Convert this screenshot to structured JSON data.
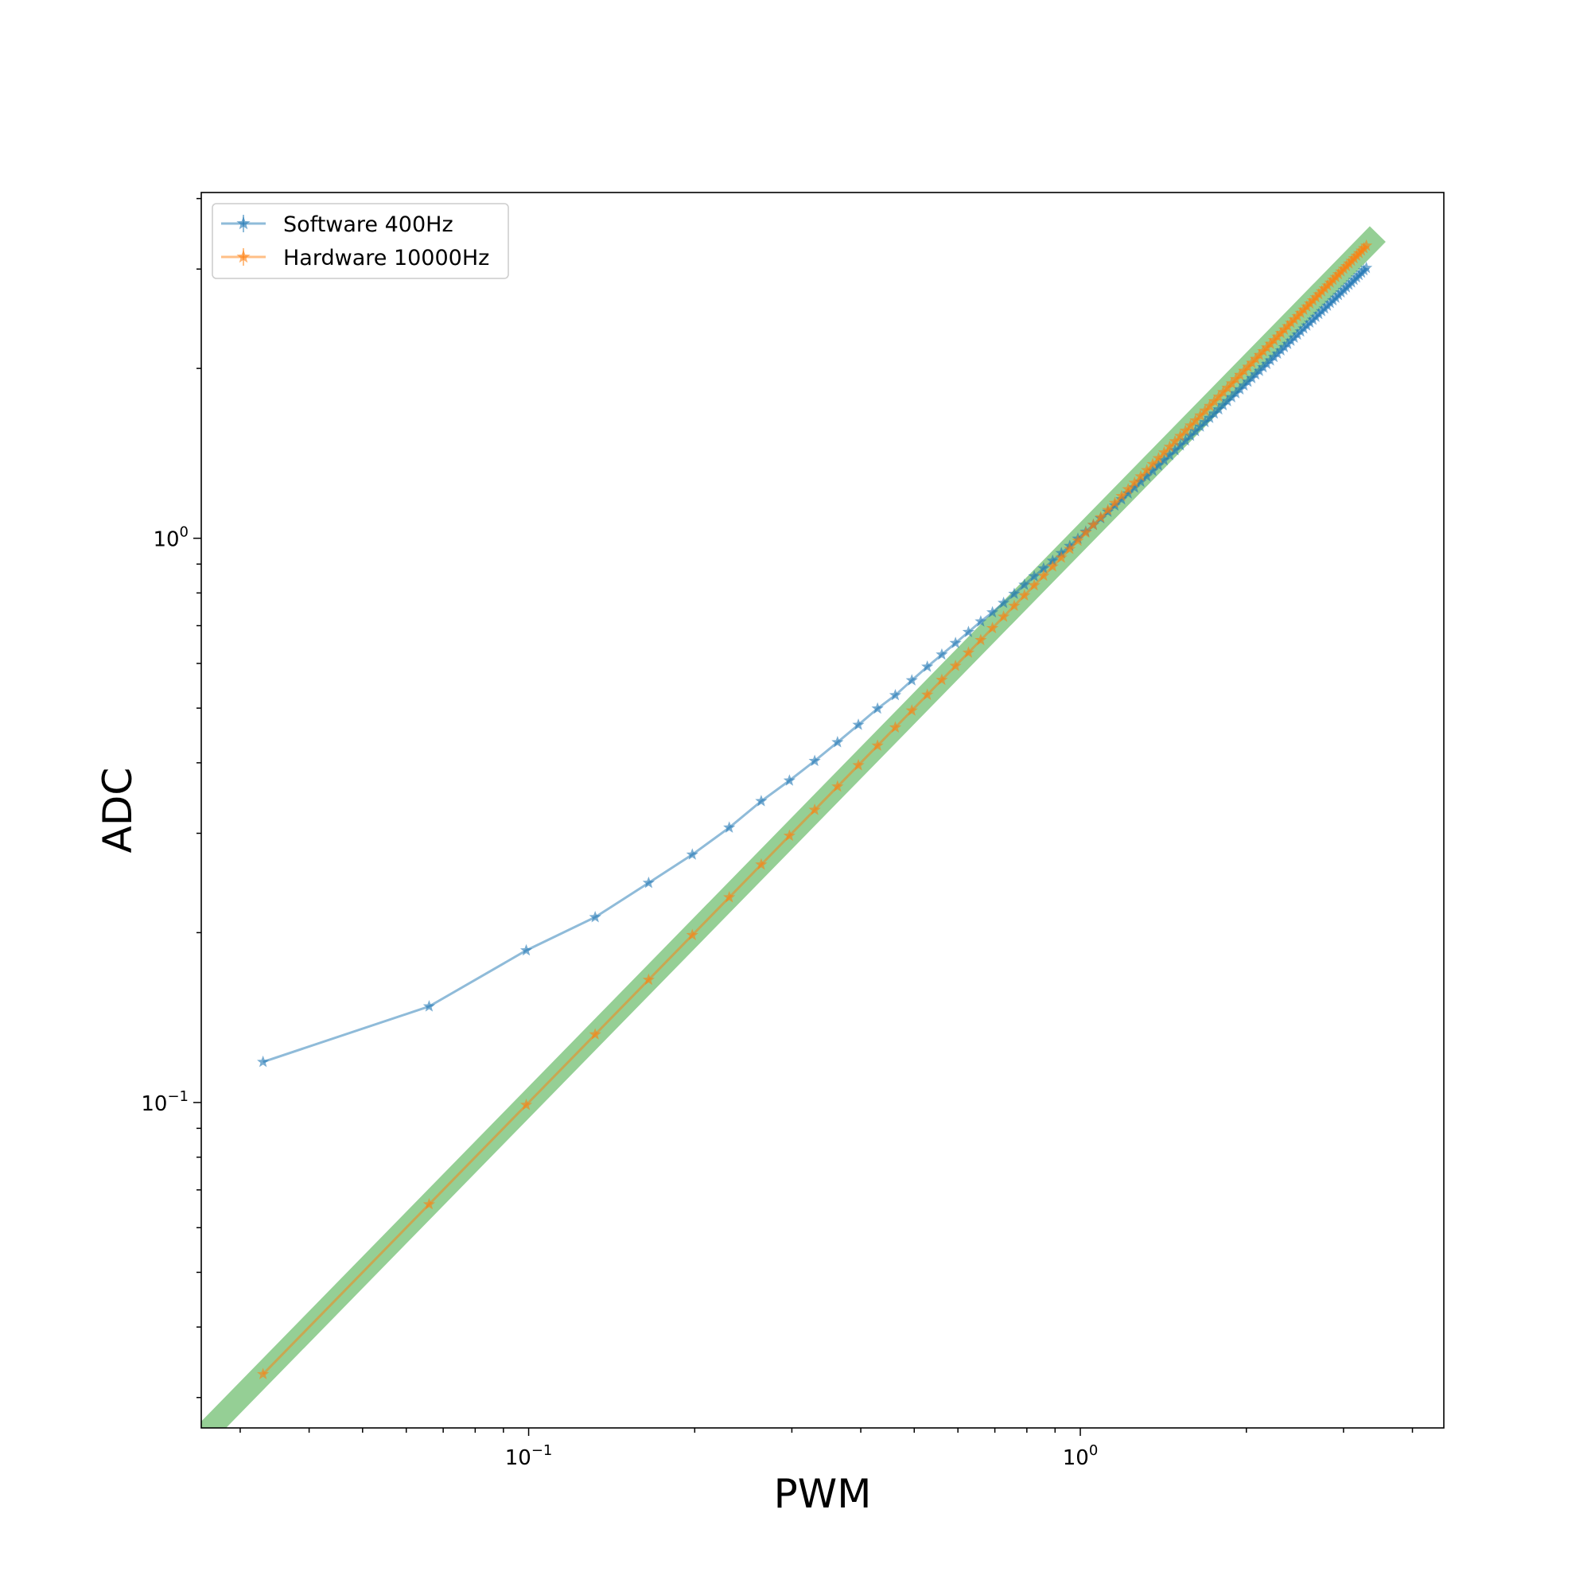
{
  "chart_data": {
    "type": "line",
    "xscale": "log",
    "yscale": "log",
    "xlabel": "PWM",
    "ylabel": "ADC",
    "xlim": [
      0.0255,
      4.56
    ],
    "ylim": [
      0.0265,
      4.1
    ],
    "xticks": [
      {
        "value": 0.1,
        "base": "10",
        "exp": "−1"
      },
      {
        "value": 1,
        "base": "10",
        "exp": "0"
      }
    ],
    "yticks": [
      {
        "value": 0.1,
        "base": "10",
        "exp": "−1"
      },
      {
        "value": 1,
        "base": "10",
        "exp": "0"
      }
    ],
    "grid": false,
    "legend": {
      "placement": "top-left"
    },
    "reference_line": {
      "x": [
        0.0255,
        3.35
      ],
      "y": [
        0.0255,
        3.35
      ],
      "color": "#2ca02c",
      "opacity": 0.5
    },
    "series": [
      {
        "name": "Software 400Hz",
        "color": "#1f77b4",
        "marker": "star",
        "x": [
          0.033,
          0.066,
          0.099,
          0.132,
          0.165,
          0.198,
          0.231,
          0.264,
          0.297,
          0.33,
          0.363,
          0.396,
          0.429,
          0.462,
          0.495,
          0.528,
          0.561,
          0.594,
          0.627,
          0.66,
          0.693,
          0.726,
          0.759,
          0.792,
          0.825,
          0.858,
          0.891,
          0.924,
          0.957,
          0.99,
          1.023,
          1.056,
          1.089,
          1.122,
          1.155,
          1.188,
          1.221,
          1.254,
          1.287,
          1.32,
          1.353,
          1.386,
          1.419,
          1.452,
          1.485,
          1.518,
          1.551,
          1.584,
          1.617,
          1.65,
          1.683,
          1.716,
          1.749,
          1.782,
          1.815,
          1.848,
          1.881,
          1.914,
          1.947,
          1.98,
          2.013,
          2.046,
          2.079,
          2.112,
          2.145,
          2.178,
          2.211,
          2.244,
          2.277,
          2.31,
          2.343,
          2.376,
          2.409,
          2.442,
          2.475,
          2.508,
          2.541,
          2.574,
          2.607,
          2.64,
          2.673,
          2.706,
          2.739,
          2.772,
          2.805,
          2.838,
          2.871,
          2.904,
          2.937,
          2.97,
          3.003,
          3.036,
          3.069,
          3.102,
          3.135,
          3.168,
          3.201,
          3.234,
          3.267,
          3.3
        ],
        "y": [
          0.118,
          0.148,
          0.186,
          0.213,
          0.245,
          0.275,
          0.307,
          0.342,
          0.372,
          0.403,
          0.435,
          0.467,
          0.499,
          0.527,
          0.56,
          0.592,
          0.622,
          0.652,
          0.682,
          0.712,
          0.739,
          0.768,
          0.797,
          0.827,
          0.856,
          0.884,
          0.912,
          0.941,
          0.969,
          0.998,
          1.027,
          1.056,
          1.085,
          1.114,
          1.143,
          1.172,
          1.201,
          1.23,
          1.259,
          1.288,
          1.317,
          1.346,
          1.375,
          1.404,
          1.432,
          1.461,
          1.49,
          1.519,
          1.548,
          1.577,
          1.606,
          1.634,
          1.663,
          1.692,
          1.721,
          1.75,
          1.778,
          1.807,
          1.836,
          1.865,
          1.894,
          1.922,
          1.951,
          1.98,
          2.009,
          2.037,
          2.066,
          2.095,
          2.124,
          2.152,
          2.181,
          2.21,
          2.239,
          2.267,
          2.296,
          2.325,
          2.354,
          2.382,
          2.411,
          2.44,
          2.468,
          2.497,
          2.526,
          2.554,
          2.583,
          2.612,
          2.641,
          2.669,
          2.698,
          2.727,
          2.755,
          2.784,
          2.813,
          2.841,
          2.87,
          2.899,
          2.927,
          2.956,
          2.985,
          3.013
        ]
      },
      {
        "name": "Hardware 10000Hz",
        "color": "#ff7f0e",
        "marker": "star",
        "x": [
          0.033,
          0.066,
          0.099,
          0.132,
          0.165,
          0.198,
          0.231,
          0.264,
          0.297,
          0.33,
          0.363,
          0.396,
          0.429,
          0.462,
          0.495,
          0.528,
          0.561,
          0.594,
          0.627,
          0.66,
          0.693,
          0.726,
          0.759,
          0.792,
          0.825,
          0.858,
          0.891,
          0.924,
          0.957,
          0.99,
          1.023,
          1.056,
          1.089,
          1.122,
          1.155,
          1.188,
          1.221,
          1.254,
          1.287,
          1.32,
          1.353,
          1.386,
          1.419,
          1.452,
          1.485,
          1.518,
          1.551,
          1.584,
          1.617,
          1.65,
          1.683,
          1.716,
          1.749,
          1.782,
          1.815,
          1.848,
          1.881,
          1.914,
          1.947,
          1.98,
          2.013,
          2.046,
          2.079,
          2.112,
          2.145,
          2.178,
          2.211,
          2.244,
          2.277,
          2.31,
          2.343,
          2.376,
          2.409,
          2.442,
          2.475,
          2.508,
          2.541,
          2.574,
          2.607,
          2.64,
          2.673,
          2.706,
          2.739,
          2.772,
          2.805,
          2.838,
          2.871,
          2.904,
          2.937,
          2.97,
          3.003,
          3.036,
          3.069,
          3.102,
          3.135,
          3.168,
          3.201,
          3.234,
          3.267,
          3.3
        ],
        "y": [
          0.033,
          0.066,
          0.099,
          0.132,
          0.165,
          0.198,
          0.231,
          0.264,
          0.297,
          0.33,
          0.363,
          0.396,
          0.429,
          0.462,
          0.495,
          0.528,
          0.561,
          0.594,
          0.627,
          0.66,
          0.693,
          0.726,
          0.759,
          0.792,
          0.825,
          0.858,
          0.891,
          0.924,
          0.957,
          0.99,
          1.023,
          1.056,
          1.089,
          1.122,
          1.155,
          1.188,
          1.221,
          1.254,
          1.287,
          1.32,
          1.353,
          1.386,
          1.419,
          1.452,
          1.485,
          1.518,
          1.551,
          1.584,
          1.617,
          1.65,
          1.683,
          1.716,
          1.749,
          1.782,
          1.815,
          1.848,
          1.881,
          1.914,
          1.947,
          1.98,
          2.013,
          2.046,
          2.079,
          2.112,
          2.145,
          2.178,
          2.211,
          2.244,
          2.277,
          2.31,
          2.343,
          2.376,
          2.409,
          2.442,
          2.475,
          2.508,
          2.541,
          2.574,
          2.607,
          2.64,
          2.673,
          2.706,
          2.739,
          2.772,
          2.805,
          2.838,
          2.871,
          2.904,
          2.937,
          2.97,
          3.003,
          3.036,
          3.069,
          3.102,
          3.135,
          3.168,
          3.201,
          3.234,
          3.267,
          3.3
        ]
      }
    ]
  }
}
